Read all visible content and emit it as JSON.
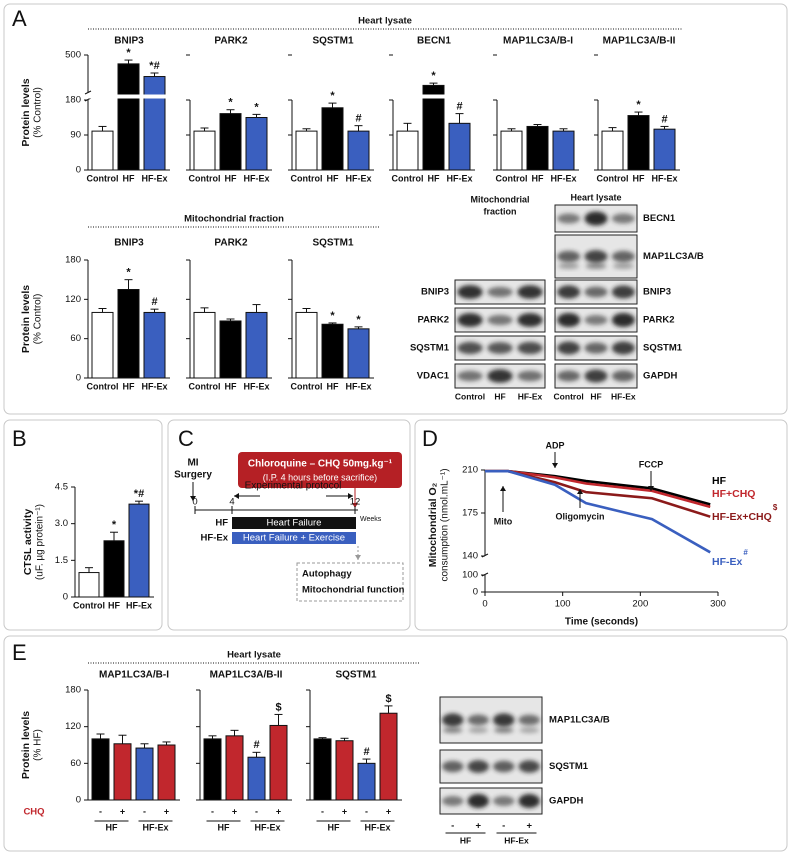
{
  "panel_labels": [
    "A",
    "B",
    "C",
    "D",
    "E"
  ],
  "headers": {
    "a_lysate": "Heart lysate",
    "a_mito": "Mitochondrial fraction",
    "e_lysate": "Heart lysate"
  },
  "chart_data": [
    {
      "type": "bar",
      "title": "BNIP3",
      "ylabel": "Protein levels",
      "ylabel_sub": "(% Control)",
      "categories": [
        "Control",
        "HF",
        "HF-Ex"
      ],
      "values": [
        100,
        430,
        330
      ],
      "errors": [
        12,
        30,
        28
      ],
      "annotations": [
        null,
        "*",
        "*#"
      ],
      "colors": [
        "#ffffff",
        "#000000",
        "#3a5fbf"
      ],
      "ylim": [
        0,
        500
      ],
      "axis_break": [
        180,
        200
      ],
      "yticks": [
        0,
        90,
        180,
        500
      ]
    },
    {
      "type": "bar",
      "title": "PARK2",
      "categories": [
        "Control",
        "HF",
        "HF-Ex"
      ],
      "values": [
        100,
        145,
        135
      ],
      "errors": [
        8,
        10,
        8
      ],
      "annotations": [
        null,
        "*",
        "*"
      ],
      "colors": [
        "#ffffff",
        "#000000",
        "#3a5fbf"
      ],
      "ylim": [
        0,
        500
      ],
      "axis_break": [
        180,
        200
      ],
      "yticks": [
        0,
        90,
        180,
        500
      ]
    },
    {
      "type": "bar",
      "title": "SQSTM1",
      "categories": [
        "Control",
        "HF",
        "HF-Ex"
      ],
      "values": [
        100,
        160,
        100
      ],
      "errors": [
        6,
        12,
        14
      ],
      "annotations": [
        null,
        "*",
        "#"
      ],
      "colors": [
        "#ffffff",
        "#000000",
        "#3a5fbf"
      ],
      "ylim": [
        0,
        500
      ],
      "axis_break": [
        180,
        200
      ],
      "yticks": [
        0,
        90,
        180,
        500
      ]
    },
    {
      "type": "bar",
      "title": "BECN1",
      "categories": [
        "Control",
        "HF",
        "HF-Ex"
      ],
      "values": [
        100,
        260,
        120
      ],
      "errors": [
        20,
        18,
        25
      ],
      "annotations": [
        null,
        "*",
        "#"
      ],
      "colors": [
        "#ffffff",
        "#000000",
        "#3a5fbf"
      ],
      "ylim": [
        0,
        500
      ],
      "axis_break": [
        180,
        200
      ],
      "yticks": [
        0,
        90,
        180,
        500
      ]
    },
    {
      "type": "bar",
      "title": "MAP1LC3A/B-I",
      "categories": [
        "Control",
        "HF",
        "HF-Ex"
      ],
      "values": [
        100,
        112,
        100
      ],
      "errors": [
        6,
        5,
        6
      ],
      "annotations": [
        null,
        null,
        null
      ],
      "colors": [
        "#ffffff",
        "#000000",
        "#3a5fbf"
      ],
      "ylim": [
        0,
        500
      ],
      "axis_break": [
        180,
        200
      ],
      "yticks": [
        0,
        90,
        180,
        500
      ]
    },
    {
      "type": "bar",
      "title": "MAP1LC3A/B-II",
      "categories": [
        "Control",
        "HF",
        "HF-Ex"
      ],
      "values": [
        100,
        140,
        105
      ],
      "errors": [
        9,
        9,
        7
      ],
      "annotations": [
        null,
        "*",
        "#"
      ],
      "colors": [
        "#ffffff",
        "#000000",
        "#3a5fbf"
      ],
      "ylim": [
        0,
        500
      ],
      "axis_break": [
        180,
        200
      ],
      "yticks": [
        0,
        90,
        180,
        500
      ]
    },
    {
      "type": "bar",
      "title": "BNIP3",
      "ylabel": "Protein levels",
      "ylabel_sub": "(% Control)",
      "categories": [
        "Control",
        "HF",
        "HF-Ex"
      ],
      "values": [
        100,
        135,
        100
      ],
      "errors": [
        6,
        15,
        5
      ],
      "annotations": [
        null,
        "*",
        "#"
      ],
      "colors": [
        "#ffffff",
        "#000000",
        "#3a5fbf"
      ],
      "ylim": [
        0,
        180
      ],
      "yticks": [
        0,
        60,
        120,
        180
      ]
    },
    {
      "type": "bar",
      "title": "PARK2",
      "categories": [
        "Control",
        "HF",
        "HF-Ex"
      ],
      "values": [
        100,
        87,
        100
      ],
      "errors": [
        7,
        3,
        12
      ],
      "annotations": [
        null,
        null,
        null
      ],
      "colors": [
        "#ffffff",
        "#000000",
        "#3a5fbf"
      ],
      "ylim": [
        0,
        180
      ],
      "yticks": [
        0,
        60,
        120,
        180
      ]
    },
    {
      "type": "bar",
      "title": "SQSTM1",
      "categories": [
        "Control",
        "HF",
        "HF-Ex"
      ],
      "values": [
        100,
        82,
        75
      ],
      "errors": [
        6,
        2,
        3
      ],
      "annotations": [
        null,
        "*",
        "*"
      ],
      "colors": [
        "#ffffff",
        "#000000",
        "#3a5fbf"
      ],
      "ylim": [
        0,
        180
      ],
      "yticks": [
        0,
        60,
        120,
        180
      ]
    },
    {
      "type": "bar",
      "ylabel": "CTSL activity",
      "ylabel_sub": "(uF. µg protein⁻¹)",
      "categories": [
        "Control",
        "HF",
        "HF-Ex"
      ],
      "values": [
        1,
        2.3,
        3.8
      ],
      "errors": [
        0.2,
        0.35,
        0.12
      ],
      "annotations": [
        null,
        "*",
        "*#"
      ],
      "colors": [
        "#ffffff",
        "#000000",
        "#3a5fbf"
      ],
      "ylim": [
        0,
        4.5
      ],
      "yticks": [
        0,
        1.5,
        {
          "value": 3,
          "label": "3.0"
        },
        4.5
      ]
    },
    {
      "type": "line",
      "ylabel": "Mitochondrial O₂",
      "ylabel_sub": "consumption (nmol.mL⁻¹)",
      "xlabel": "Time (seconds)",
      "x": [
        0,
        30,
        90,
        130,
        215,
        290
      ],
      "series": [
        {
          "name": "HF",
          "color": "#000000",
          "values": [
            209,
            209,
            205,
            201,
            195,
            182
          ]
        },
        {
          "name": "HF+CHQ",
          "color": "#c1272d",
          "values": [
            209,
            209,
            204,
            199,
            193,
            180
          ]
        },
        {
          "name": "HF-Ex+CHQ",
          "superscript": "$",
          "color": "#8b1a1a",
          "values": [
            209,
            209,
            200,
            192,
            187,
            172
          ]
        },
        {
          "name": "HF-Ex",
          "superscript": "#",
          "color": "#3a5fbf",
          "values": [
            209,
            209,
            198,
            183,
            170,
            143
          ]
        }
      ],
      "annotations": [
        "Mito",
        "ADP",
        "Oligomycin",
        "FCCP"
      ],
      "xlim": [
        0,
        300
      ],
      "xticks": [
        0,
        100,
        200,
        300
      ],
      "ylim": [
        0,
        210
      ],
      "axis_break": [
        100,
        140
      ],
      "yticks": [
        0,
        100,
        140,
        175,
        210
      ]
    },
    {
      "type": "bar",
      "title": "MAP1LC3A/B-I",
      "ylabel": "Protein levels",
      "ylabel_sub": "(% HF)",
      "treatment_label": "CHQ",
      "categories": [
        "-",
        "+",
        "-",
        "+"
      ],
      "groups": [
        "HF",
        "HF-Ex"
      ],
      "values": [
        100,
        92,
        85,
        90
      ],
      "errors": [
        8,
        14,
        7,
        5
      ],
      "annotations": [
        null,
        null,
        null,
        null
      ],
      "colors": [
        "#000000",
        "#c1272d",
        "#3a5fbf",
        "#c1272d"
      ],
      "ylim": [
        0,
        180
      ],
      "yticks": [
        0,
        60,
        120,
        180
      ]
    },
    {
      "type": "bar",
      "title": "MAP1LC3A/B-II",
      "categories": [
        "-",
        "+",
        "-",
        "+"
      ],
      "groups": [
        "HF",
        "HF-Ex"
      ],
      "values": [
        100,
        105,
        70,
        122
      ],
      "errors": [
        5,
        9,
        8,
        18
      ],
      "annotations": [
        null,
        null,
        "#",
        "$"
      ],
      "colors": [
        "#000000",
        "#c1272d",
        "#3a5fbf",
        "#c1272d"
      ],
      "ylim": [
        0,
        180
      ],
      "yticks": [
        0,
        60,
        120,
        180
      ]
    },
    {
      "type": "bar",
      "title": "SQSTM1",
      "categories": [
        "-",
        "+",
        "-",
        "+"
      ],
      "groups": [
        "HF",
        "HF-Ex"
      ],
      "values": [
        100,
        97,
        60,
        142
      ],
      "errors": [
        2,
        4,
        7,
        12
      ],
      "annotations": [
        null,
        null,
        "#",
        "$"
      ],
      "colors": [
        "#000000",
        "#c1272d",
        "#3a5fbf",
        "#c1272d"
      ],
      "ylim": [
        0,
        180
      ],
      "yticks": [
        0,
        60,
        120,
        180
      ]
    }
  ],
  "blots_A": {
    "mito_title": [
      "Mitochondrial",
      "fraction"
    ],
    "lysate_title": "Heart lysate",
    "mito_rows": [
      "BNIP3",
      "PARK2",
      "SQSTM1",
      "VDAC1"
    ],
    "lysate_rows": [
      "BECN1",
      "MAP1LC3A/B",
      "BNIP3",
      "PARK2",
      "SQSTM1",
      "GAPDH"
    ],
    "lanes": [
      "Control",
      "HF",
      "HF-Ex"
    ]
  },
  "diagram_C": {
    "treatment": [
      "Chloroquine – CHQ 50mg.kg⁻¹",
      "(I.P. 4 hours before sacrifice)"
    ],
    "surgery": [
      "MI",
      "Surgery"
    ],
    "protocol": "Experimental protocol",
    "ticks": [
      0,
      4,
      12
    ],
    "unit": "Weeks",
    "groups": [
      "HF",
      "HF-Ex"
    ],
    "bars": [
      "Heart Failure",
      "Heart Failure + Exercise"
    ],
    "outcomes": [
      "Autophagy",
      "Mitochondrial function"
    ]
  },
  "blots_E": {
    "rows": [
      "MAP1LC3A/B",
      "SQSTM1",
      "GAPDH"
    ],
    "lanes": [
      "-",
      "+",
      "-",
      "+"
    ],
    "groups": [
      "HF",
      "HF-Ex"
    ]
  }
}
